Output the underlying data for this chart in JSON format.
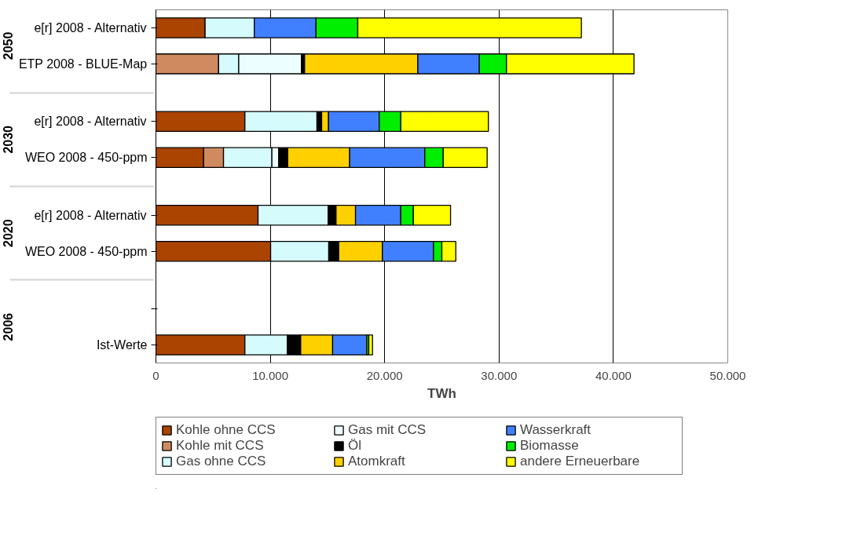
{
  "chart_data": {
    "type": "bar",
    "orientation": "horizontal",
    "stacked": true,
    "xlabel": "TWh",
    "categories": [
      "e[r] 2008 - Alternativ",
      "ETP 2008 - BLUE-Map",
      "e[r] 2008 - Alternativ",
      "WEO 2008 - 450-ppm",
      "e[r] 2008 - Alternativ",
      "WEO 2008 - 450-ppm",
      null,
      "Ist-Werte"
    ],
    "annotations": [
      "2050",
      "2030",
      "2020",
      "2006"
    ],
    "xlim": [
      0,
      50000
    ],
    "xticks": [
      0,
      {
        "value": 10000,
        "label": "10.000"
      },
      {
        "value": 20000,
        "label": "20.000"
      },
      {
        "value": 30000,
        "label": "30.000"
      },
      {
        "value": 40000,
        "label": "40.000"
      },
      {
        "value": 50000,
        "label": "50.000"
      }
    ],
    "grid": "x",
    "legend": "bottom",
    "series": [
      {
        "name": "Kohle ohne CCS",
        "color": "#aa4400",
        "values": [
          4300,
          0,
          7780,
          4170,
          8930,
          10030,
          null,
          7780
        ]
      },
      {
        "name": "Kohle mit CCS",
        "color": "#d08a60",
        "values": [
          0,
          5480,
          0,
          1740,
          0,
          0,
          null,
          0
        ]
      },
      {
        "name": "Gas ohne CCS",
        "color": "#d5fbfd",
        "values": [
          4300,
          1760,
          6300,
          4230,
          6130,
          5080,
          null,
          3710
        ]
      },
      {
        "name": "Gas mit CCS",
        "color": "#ecfeff",
        "values": [
          0,
          5490,
          0,
          600,
          0,
          0,
          null,
          0
        ]
      },
      {
        "name": "Öl",
        "color": "#000000",
        "values": [
          0,
          270,
          410,
          780,
          690,
          870,
          null,
          1170
        ]
      },
      {
        "name": "Atomkraft",
        "color": "#ffd000",
        "values": [
          0,
          9900,
          600,
          5420,
          1700,
          3820,
          null,
          2790
        ]
      },
      {
        "name": "Wasserkraft",
        "color": "#4080ff",
        "values": [
          5400,
          5380,
          4440,
          6570,
          3960,
          4470,
          null,
          2980
        ]
      },
      {
        "name": "Biomasse",
        "color": "#00ee00",
        "values": [
          3650,
          2370,
          1880,
          1610,
          1100,
          730,
          null,
          180
        ]
      },
      {
        "name": "andere Erneuerbare",
        "color": "#ffff00",
        "values": [
          19550,
          11150,
          7660,
          3840,
          3250,
          1220,
          null,
          330
        ]
      }
    ]
  }
}
